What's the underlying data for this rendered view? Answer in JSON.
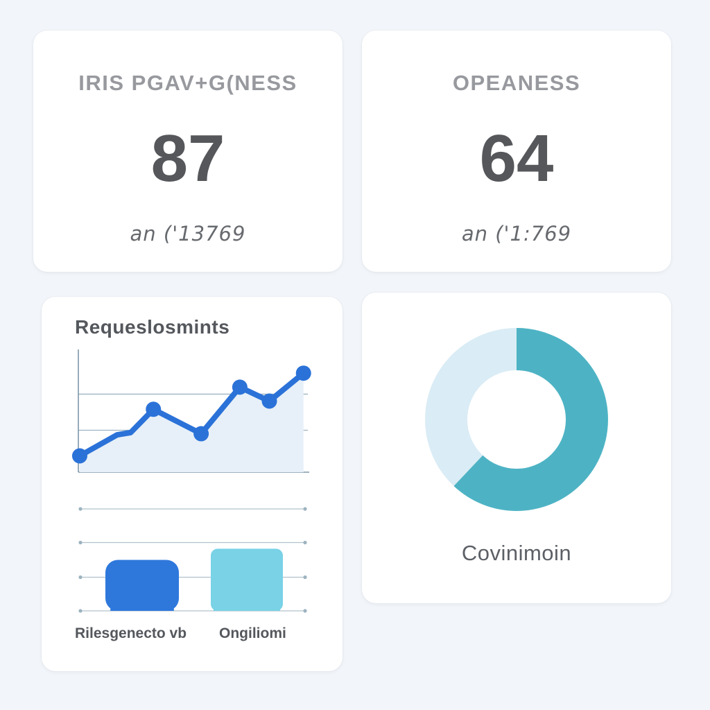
{
  "page": {
    "background": "#f2f5f9"
  },
  "cards": {
    "iris": {
      "title": "IRIS PGAV+G(NESS",
      "value": "87",
      "subtitle": "an ('13769"
    },
    "openness": {
      "title": "OPEANESS",
      "value": "64",
      "subtitle": "an ('1:769"
    },
    "requests": {
      "title": "Requeslosmints"
    },
    "coverage": {
      "label": "Covinimoin"
    }
  },
  "colors": {
    "line_blue": "#2b72d8",
    "area_fill": "#e7f0f8",
    "grid": "#9db3c0",
    "axis": "#7e98a9",
    "bar_blue": "#2e78dc",
    "bar_cyan": "#79d2e6",
    "donut_teal": "#4db3c4",
    "donut_light": "#daecf5"
  },
  "chart_data": [
    {
      "type": "area",
      "title": "Requeslosmints",
      "x": [
        0.6,
        17,
        23,
        33,
        54,
        71,
        84,
        99
      ],
      "y": [
        14,
        32,
        34,
        54,
        33,
        73,
        61,
        85
      ],
      "marker_indices": [
        0,
        3,
        4,
        5,
        6,
        7
      ],
      "gridlines_y": [
        36,
        67
      ],
      "xlim": [
        0,
        100
      ],
      "ylim": [
        0,
        100
      ],
      "xlabel": "",
      "ylabel": "",
      "grid": true,
      "legend": false
    },
    {
      "type": "bar",
      "categories": [
        "Rilesgenecto vb",
        "Ongiliomi"
      ],
      "values": [
        50,
        61
      ],
      "gridlines_y": [
        0,
        33,
        67,
        100
      ],
      "ylim": [
        0,
        100
      ],
      "grid": true,
      "legend": false
    },
    {
      "type": "donut",
      "title": "Covinimoin",
      "slices": [
        {
          "value": 62,
          "color": "#4db3c4"
        },
        {
          "value": 38,
          "color": "#daecf5"
        }
      ],
      "legend": false
    }
  ]
}
